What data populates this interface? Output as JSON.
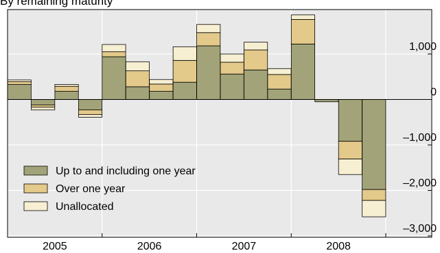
{
  "chart_data": {
    "type": "bar",
    "stacked": true,
    "subtitle": "By remaining maturity",
    "x_tick_labels": [
      "2005",
      "2006",
      "2007",
      "2008"
    ],
    "quarters_per_year": 4,
    "ylim": [
      -3000,
      1600
    ],
    "y_ticks": [
      1000,
      0,
      -1000,
      -2000,
      -3000
    ],
    "y_tick_labels": [
      "1,000",
      "0",
      "–1,000",
      "–2,000",
      "–3,000"
    ],
    "grid": true,
    "legend_position": "lower-left",
    "series": [
      {
        "name": "Up to and including one year",
        "color": "#a2a378",
        "values": [
          330,
          -120,
          180,
          -230,
          940,
          280,
          180,
          380,
          1180,
          560,
          650,
          230,
          1220,
          -50,
          -920,
          -1980
        ]
      },
      {
        "name": "Over one year",
        "color": "#e3c98a",
        "values": [
          60,
          -50,
          110,
          -100,
          110,
          350,
          160,
          480,
          290,
          260,
          440,
          320,
          540,
          0,
          -390,
          -240
        ]
      },
      {
        "name": "Unallocated",
        "color": "#f7efd2",
        "values": [
          40,
          -60,
          40,
          -60,
          160,
          200,
          100,
          300,
          180,
          180,
          170,
          130,
          100,
          0,
          -340,
          -360
        ]
      }
    ]
  }
}
